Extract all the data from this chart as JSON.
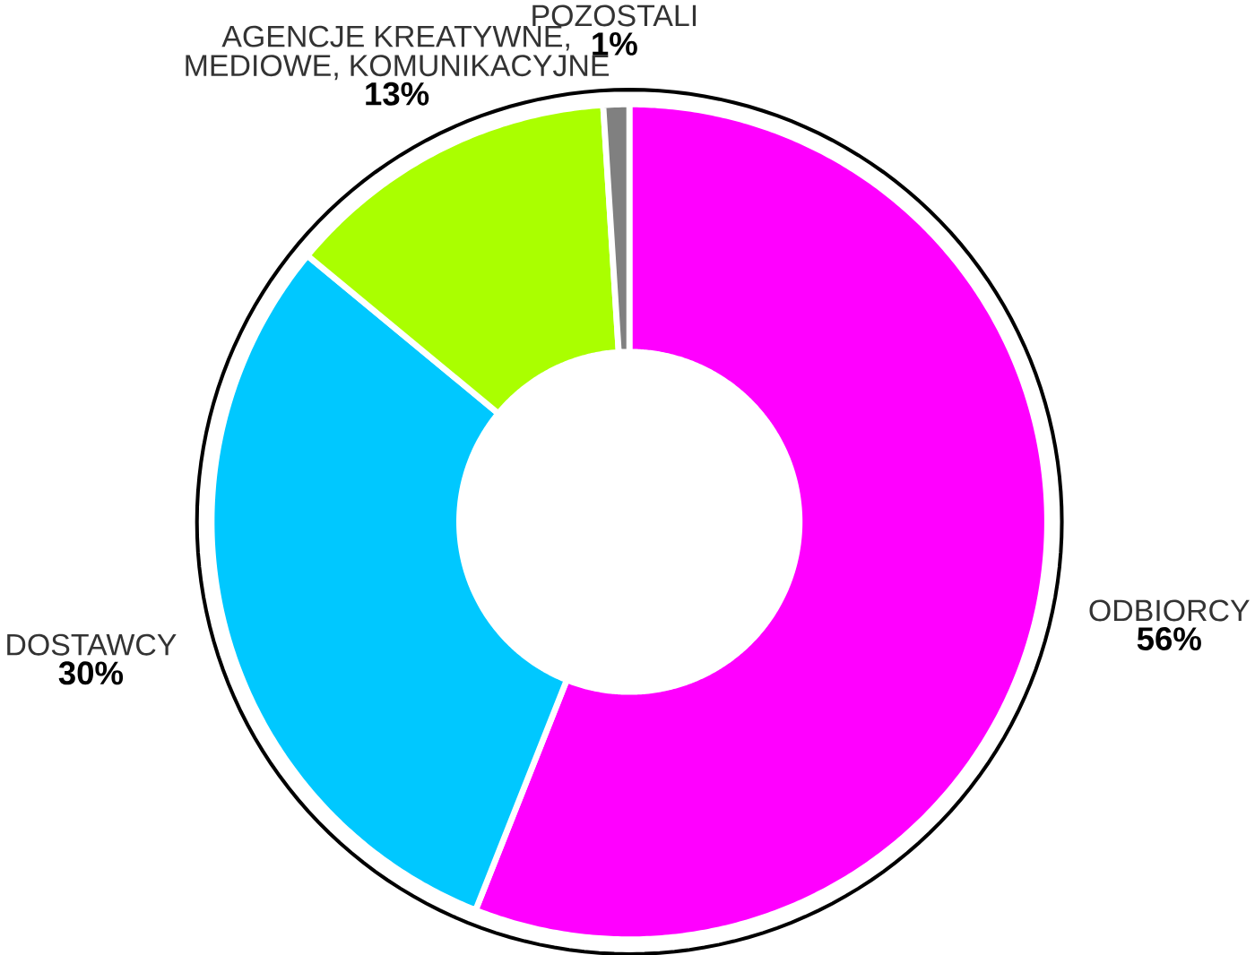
{
  "chart_data": {
    "type": "donut",
    "categories": [
      "ODBIORCY",
      "DOSTAWCY",
      "AGENCJE KREATYWNE, MEDIOWE, KOMUNIKACYJNE",
      "POZOSTALI"
    ],
    "values": [
      56,
      30,
      13,
      1
    ],
    "colors": [
      "#ff00ff",
      "#00c8ff",
      "#aaff00",
      "#808080"
    ],
    "value_labels": [
      "56%",
      "30%",
      "13%",
      "1%"
    ]
  }
}
